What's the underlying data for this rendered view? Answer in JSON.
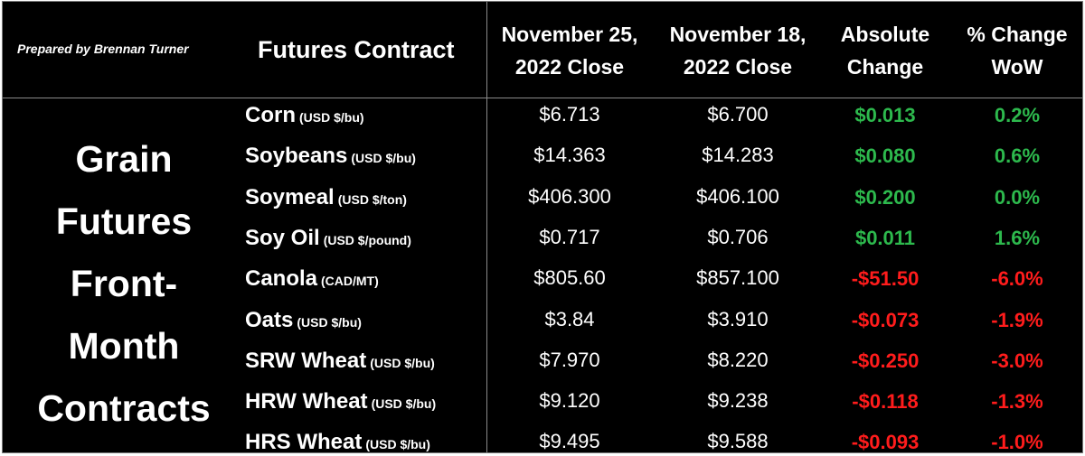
{
  "header": {
    "prepared_by": "Prepared by Brennan Turner",
    "futures_contract": "Futures Contract",
    "col1_line1": "November 25,",
    "col1_line2": "2022 Close",
    "col2_line1": "November 18,",
    "col2_line2": "2022 Close",
    "col3_line1": "Absolute",
    "col3_line2": "Change",
    "col4_line1": "% Change",
    "col4_line2": "WoW"
  },
  "side_title": {
    "line1": "Grain",
    "line2": "Futures",
    "line3": "Front-",
    "line4": "Month",
    "line5": "Contracts"
  },
  "colors": {
    "positive": "#2db94d",
    "negative": "#ff1c1c"
  },
  "rows": [
    {
      "name": "Corn",
      "unit": "(USD $/bu)",
      "close1": "$6.713",
      "close2": "$6.700",
      "abs": "$0.013",
      "pct": "0.2%",
      "dir": "up"
    },
    {
      "name": "Soybeans",
      "unit": "(USD $/bu)",
      "close1": "$14.363",
      "close2": "$14.283",
      "abs": "$0.080",
      "pct": "0.6%",
      "dir": "up"
    },
    {
      "name": "Soymeal",
      "unit": "(USD $/ton)",
      "close1": "$406.300",
      "close2": "$406.100",
      "abs": "$0.200",
      "pct": "0.0%",
      "dir": "up"
    },
    {
      "name": "Soy Oil",
      "unit": "(USD $/pound)",
      "close1": "$0.717",
      "close2": "$0.706",
      "abs": "$0.011",
      "pct": "1.6%",
      "dir": "up"
    },
    {
      "name": "Canola",
      "unit": "(CAD/MT)",
      "close1": "$805.60",
      "close2": "$857.100",
      "abs": "-$51.50",
      "pct": "-6.0%",
      "dir": "down"
    },
    {
      "name": "Oats",
      "unit": "(USD $/bu)",
      "close1": "$3.84",
      "close2": "$3.910",
      "abs": "-$0.073",
      "pct": "-1.9%",
      "dir": "down"
    },
    {
      "name": "SRW Wheat",
      "unit": "(USD $/bu)",
      "close1": "$7.970",
      "close2": "$8.220",
      "abs": "-$0.250",
      "pct": "-3.0%",
      "dir": "down"
    },
    {
      "name": "HRW Wheat",
      "unit": "(USD $/bu)",
      "close1": "$9.120",
      "close2": "$9.238",
      "abs": "-$0.118",
      "pct": "-1.3%",
      "dir": "down"
    },
    {
      "name": "HRS Wheat",
      "unit": "(USD $/bu)",
      "close1": "$9.495",
      "close2": "$9.588",
      "abs": "-$0.093",
      "pct": "-1.0%",
      "dir": "down"
    }
  ]
}
